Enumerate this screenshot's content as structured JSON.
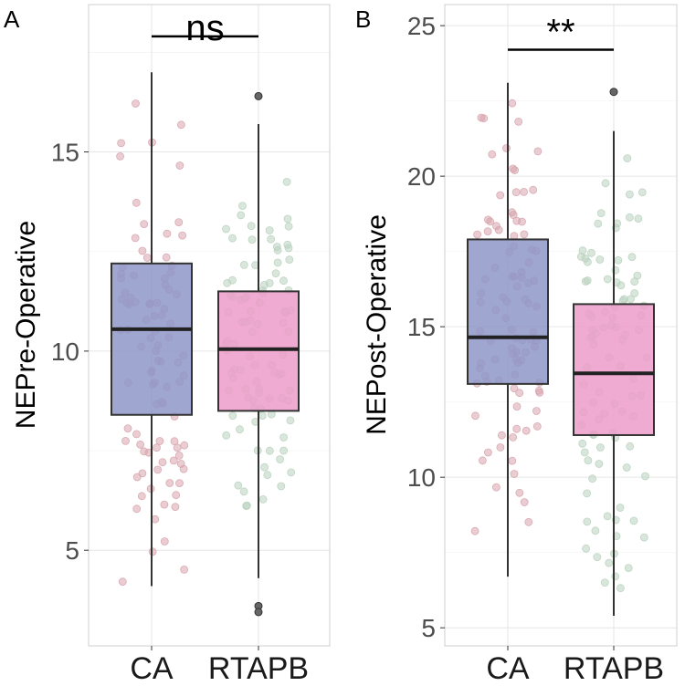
{
  "chart_data": [
    {
      "type": "box",
      "panel_label": "A",
      "ylabel": "NEPre-Operative",
      "categories": [
        "CA",
        "RTAPB"
      ],
      "y_ticks": [
        5,
        10,
        15
      ],
      "ylim": [
        2.6,
        18.7
      ],
      "boxes": [
        {
          "name": "CA",
          "min": 4.1,
          "q1": 8.4,
          "median": 10.55,
          "q3": 12.2,
          "max": 17.0,
          "fill": "#8e96c8",
          "point_color": "#d7a4ad",
          "outliers": []
        },
        {
          "name": "RTAPB",
          "min": 4.3,
          "q1": 8.5,
          "median": 10.05,
          "q3": 11.5,
          "max": 15.7,
          "fill": "#ec9cc9",
          "point_color": "#b9d2bf",
          "outliers": [
            16.4,
            3.6,
            3.45
          ]
        }
      ],
      "significance": {
        "label": "ns",
        "between": [
          "CA",
          "RTAPB"
        ],
        "y": 17.9
      }
    },
    {
      "type": "box",
      "panel_label": "B",
      "ylabel": "NEPost-Operative",
      "categories": [
        "CA",
        "RTAPB"
      ],
      "y_ticks": [
        5,
        10,
        15,
        20,
        25
      ],
      "ylim": [
        4.4,
        25.7
      ],
      "boxes": [
        {
          "name": "CA",
          "min": 6.7,
          "q1": 13.1,
          "median": 14.65,
          "q3": 17.9,
          "max": 23.1,
          "fill": "#8e96c8",
          "point_color": "#d7a4ad",
          "outliers": []
        },
        {
          "name": "RTAPB",
          "min": 5.4,
          "q1": 11.4,
          "median": 13.45,
          "q3": 15.75,
          "max": 21.5,
          "fill": "#ec9cc9",
          "point_color": "#b9d2bf",
          "outliers": [
            22.8
          ]
        }
      ],
      "significance": {
        "label": "**",
        "between": [
          "CA",
          "RTAPB"
        ],
        "y": 24.2
      }
    }
  ]
}
